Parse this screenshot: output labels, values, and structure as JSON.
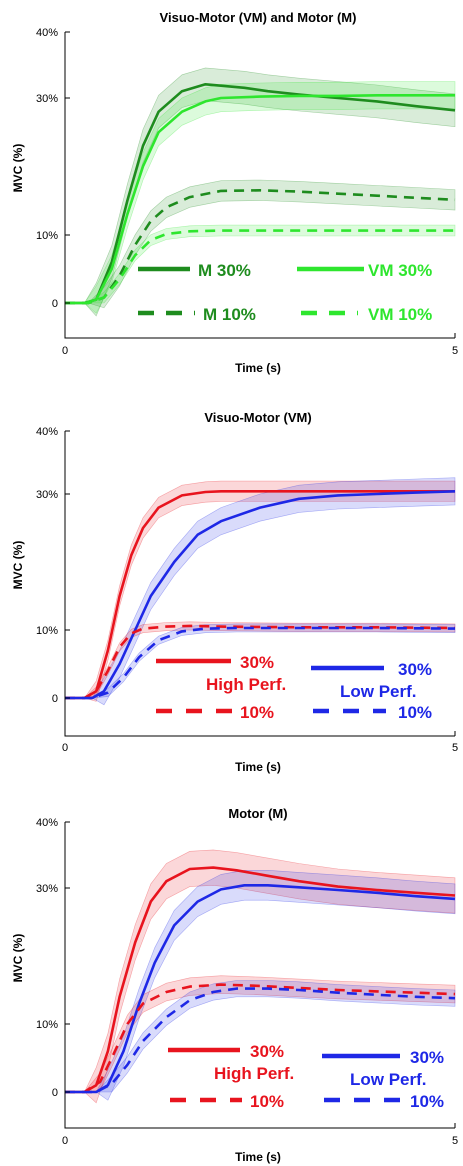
{
  "chart_data": [
    {
      "type": "line",
      "title": "Visuo-Motor (VM) and Motor (M)",
      "xlabel": "Time (s)",
      "ylabel": "MVC (%)",
      "xlim": [
        0,
        5
      ],
      "ylim": [
        -5,
        40
      ],
      "xticks": [
        0,
        5
      ],
      "xtick_labels": [
        "0",
        "5"
      ],
      "yticks": [
        0,
        10,
        30,
        40
      ],
      "ytick_labels": [
        "0",
        "10%",
        "30%",
        "40%"
      ],
      "grid": false,
      "legend": "bottom-right",
      "series": [
        {
          "name": "M 30%",
          "color": "#1e8c1e",
          "dash": "solid",
          "band": 2.4,
          "x": [
            0,
            0.25,
            0.4,
            0.6,
            0.8,
            1.0,
            1.2,
            1.5,
            1.8,
            2.0,
            2.3,
            2.6,
            3.0,
            3.5,
            4.0,
            4.5,
            5.0
          ],
          "y": [
            0,
            0,
            0.5,
            6,
            15,
            23,
            28,
            31,
            32,
            31.8,
            31.5,
            31,
            30.5,
            30,
            29.5,
            28.8,
            28.2
          ]
        },
        {
          "name": "VM 30%",
          "color": "#2ee62e",
          "dash": "solid",
          "band": 2.0,
          "x": [
            0,
            0.25,
            0.4,
            0.6,
            0.8,
            1.0,
            1.2,
            1.5,
            1.8,
            2.0,
            2.5,
            3.0,
            3.5,
            4.0,
            4.5,
            5.0
          ],
          "y": [
            0,
            0,
            0.5,
            5,
            13,
            20,
            25,
            28,
            29.5,
            30,
            30.2,
            30.3,
            30.3,
            30.4,
            30.4,
            30.4
          ]
        },
        {
          "name": "M 10%",
          "color": "#1e8c1e",
          "dash": "dashed",
          "band": 1.5,
          "x": [
            0,
            0.3,
            0.5,
            0.7,
            0.9,
            1.1,
            1.3,
            1.6,
            2.0,
            2.5,
            3.0,
            3.5,
            4.0,
            4.5,
            5.0
          ],
          "y": [
            0,
            0,
            0.8,
            4,
            8.5,
            12,
            14,
            15.5,
            16.4,
            16.5,
            16.3,
            16,
            15.7,
            15.4,
            15.1
          ]
        },
        {
          "name": "VM 10%",
          "color": "#2ee62e",
          "dash": "dashed",
          "band": 0.8,
          "x": [
            0,
            0.3,
            0.5,
            0.7,
            0.9,
            1.1,
            1.3,
            1.6,
            2.0,
            2.5,
            3.0,
            3.5,
            4.0,
            4.5,
            5.0
          ],
          "y": [
            0,
            0,
            0.8,
            3.5,
            7,
            9.2,
            10.1,
            10.5,
            10.6,
            10.6,
            10.6,
            10.6,
            10.6,
            10.6,
            10.6
          ]
        }
      ]
    },
    {
      "type": "line",
      "title": "Visuo-Motor (VM)",
      "xlabel": "Time (s)",
      "ylabel": "MVC (%)",
      "xlim": [
        0,
        5
      ],
      "ylim": [
        -5,
        40
      ],
      "xticks": [
        0,
        5
      ],
      "xtick_labels": [
        "0",
        "5"
      ],
      "yticks": [
        0,
        10,
        30,
        40
      ],
      "ytick_labels": [
        "0",
        "10%",
        "30%",
        "40%"
      ],
      "grid": false,
      "legend": "bottom-right",
      "series": [
        {
          "name": "High Perf. 30%",
          "color": "#e8141e",
          "dash": "solid",
          "band": 1.5,
          "x": [
            0,
            0.25,
            0.4,
            0.55,
            0.7,
            0.85,
            1.0,
            1.2,
            1.5,
            1.8,
            2.0,
            2.5,
            3.0,
            4.0,
            5.0
          ],
          "y": [
            0,
            0,
            1,
            7,
            15,
            21,
            25,
            28,
            29.8,
            30.3,
            30.4,
            30.4,
            30.4,
            30.4,
            30.4
          ]
        },
        {
          "name": "Low Perf. 30%",
          "color": "#1e28e6",
          "dash": "solid",
          "band": 2.0,
          "x": [
            0,
            0.35,
            0.5,
            0.7,
            0.9,
            1.1,
            1.4,
            1.7,
            2.0,
            2.5,
            3.0,
            3.5,
            4.0,
            4.5,
            5.0
          ],
          "y": [
            0,
            0,
            1,
            5,
            10,
            15,
            20,
            24,
            26,
            28,
            29.3,
            29.8,
            30,
            30.2,
            30.4
          ]
        },
        {
          "name": "High Perf. 10%",
          "color": "#e8141e",
          "dash": "dashed",
          "band": 0.6,
          "x": [
            0,
            0.25,
            0.4,
            0.55,
            0.7,
            0.85,
            1.0,
            1.3,
            1.6,
            2.0,
            3.0,
            4.0,
            5.0
          ],
          "y": [
            0,
            0,
            1,
            4,
            7.5,
            9.5,
            10.2,
            10.5,
            10.6,
            10.5,
            10.4,
            10.4,
            10.3
          ]
        },
        {
          "name": "Low Perf. 10%",
          "color": "#1e28e6",
          "dash": "dashed",
          "band": 0.6,
          "x": [
            0,
            0.35,
            0.55,
            0.75,
            0.95,
            1.2,
            1.5,
            1.8,
            2.2,
            3.0,
            4.0,
            5.0
          ],
          "y": [
            0,
            0,
            0.8,
            3,
            6,
            8.5,
            9.8,
            10.2,
            10.3,
            10.3,
            10.3,
            10.2
          ]
        }
      ]
    },
    {
      "type": "line",
      "title": "Motor (M)",
      "xlabel": "Time (s)",
      "ylabel": "MVC (%)",
      "xlim": [
        0,
        5
      ],
      "ylim": [
        -5,
        40
      ],
      "xticks": [
        0,
        5
      ],
      "xtick_labels": [
        "0",
        "5"
      ],
      "yticks": [
        0,
        10,
        30,
        40
      ],
      "ytick_labels": [
        "0",
        "10%",
        "30%",
        "40%"
      ],
      "grid": false,
      "legend": "bottom-right",
      "series": [
        {
          "name": "High Perf. 30%",
          "color": "#e8141e",
          "dash": "solid",
          "band": 2.6,
          "x": [
            0,
            0.25,
            0.4,
            0.55,
            0.7,
            0.9,
            1.1,
            1.3,
            1.6,
            1.9,
            2.2,
            2.6,
            3.0,
            3.5,
            4.0,
            4.5,
            5.0
          ],
          "y": [
            0,
            0,
            1,
            6,
            14,
            22,
            28,
            31,
            32.8,
            33,
            32.6,
            31.8,
            31,
            30.2,
            29.7,
            29.3,
            28.9
          ]
        },
        {
          "name": "Low Perf. 30%",
          "color": "#1e28e6",
          "dash": "solid",
          "band": 2.2,
          "x": [
            0,
            0.4,
            0.55,
            0.75,
            0.95,
            1.15,
            1.4,
            1.7,
            2.0,
            2.3,
            2.6,
            3.0,
            3.5,
            4.0,
            4.5,
            5.0
          ],
          "y": [
            0,
            0,
            1,
            6,
            13,
            19,
            24.5,
            28,
            29.8,
            30.4,
            30.4,
            30.1,
            29.7,
            29.3,
            28.8,
            28.4
          ]
        },
        {
          "name": "High Perf. 10%",
          "color": "#e8141e",
          "dash": "dashed",
          "band": 1.3,
          "x": [
            0,
            0.25,
            0.45,
            0.6,
            0.8,
            1.0,
            1.3,
            1.6,
            2.0,
            2.5,
            3.0,
            3.5,
            4.0,
            4.5,
            5.0
          ],
          "y": [
            0,
            0,
            1.5,
            5,
            10,
            13,
            14.7,
            15.5,
            15.8,
            15.6,
            15.3,
            15,
            14.8,
            14.6,
            14.4
          ]
        },
        {
          "name": "Low Perf. 10%",
          "color": "#1e28e6",
          "dash": "dashed",
          "band": 1.2,
          "x": [
            0,
            0.4,
            0.6,
            0.8,
            1.0,
            1.3,
            1.6,
            1.9,
            2.2,
            2.6,
            3.0,
            3.5,
            4.0,
            4.5,
            5.0
          ],
          "y": [
            0,
            0,
            1.2,
            4,
            7.5,
            11,
            13.5,
            14.7,
            15.2,
            15.2,
            15,
            14.6,
            14.3,
            14,
            13.8
          ]
        }
      ]
    }
  ],
  "legends": [
    {
      "items": [
        {
          "label": "M 30%",
          "color": "#1e8c1e",
          "dash": "solid"
        },
        {
          "label": "VM 30%",
          "color": "#2ee62e",
          "dash": "solid"
        },
        {
          "label": "M 10%",
          "color": "#1e8c1e",
          "dash": "dashed"
        },
        {
          "label": "VM 10%",
          "color": "#2ee62e",
          "dash": "dashed"
        }
      ]
    },
    {
      "groups": [
        {
          "title": "High Perf.",
          "color": "#e8141e",
          "label_30": "30%",
          "label_10": "10%"
        },
        {
          "title": "Low Perf.",
          "color": "#1e28e6",
          "label_30": "30%",
          "label_10": "10%"
        }
      ]
    },
    {
      "groups": [
        {
          "title": "High Perf.",
          "color": "#e8141e",
          "label_30": "30%",
          "label_10": "10%"
        },
        {
          "title": "Low Perf.",
          "color": "#1e28e6",
          "label_30": "30%",
          "label_10": "10%"
        }
      ]
    }
  ]
}
